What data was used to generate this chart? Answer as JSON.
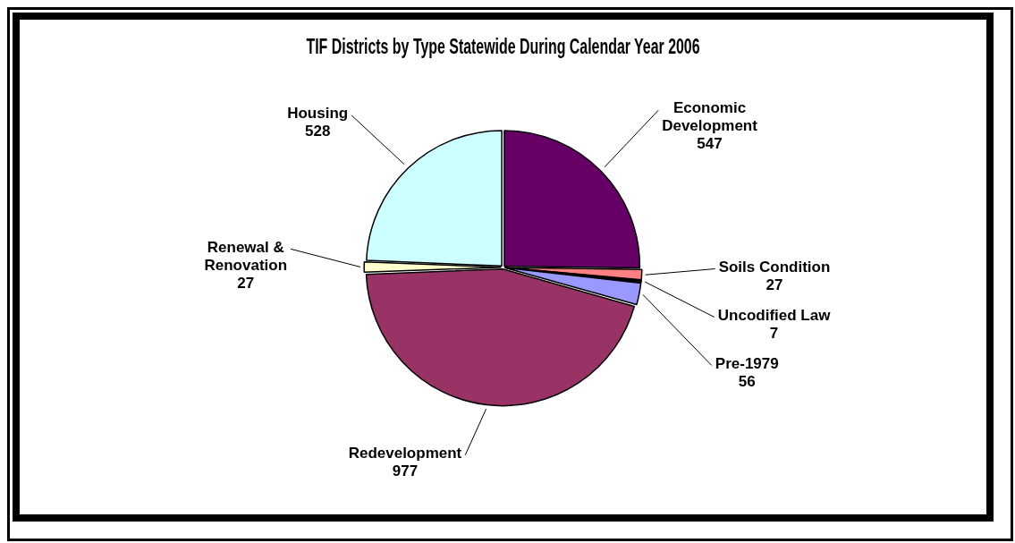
{
  "chart_data": {
    "type": "pie",
    "title": "TIF Districts by Type Statewide During Calendar Year 2006",
    "categories": [
      "Economic Development",
      "Soils Condition",
      "Uncodified Law",
      "Pre-1979",
      "Redevelopment",
      "Renewal & Renovation",
      "Housing"
    ],
    "values": [
      547,
      27,
      7,
      56,
      977,
      27,
      528
    ],
    "colors": [
      "#660066",
      "#ff8080",
      "#000000",
      "#9999ff",
      "#993366",
      "#ffffcc",
      "#ccffff"
    ],
    "data_labels": true,
    "legend": false
  }
}
